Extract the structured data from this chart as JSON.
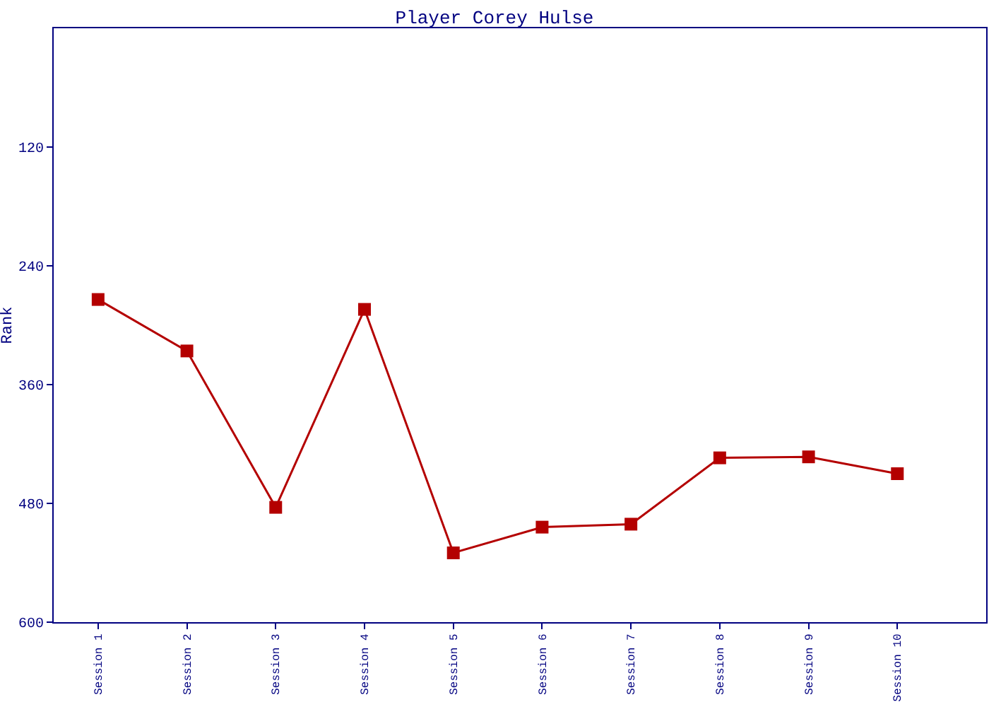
{
  "chart_data": {
    "type": "line",
    "title": "Player Corey Hulse",
    "ylabel": "Rank",
    "categories": [
      "Session 1",
      "Session 2",
      "Session 3",
      "Session 4",
      "Session 5",
      "Session 6",
      "Session 7",
      "Session 8",
      "Session 9",
      "Session 10"
    ],
    "series": [
      {
        "color": "#b40000",
        "values": [
          274,
          326,
          484,
          284,
          530,
          504,
          501,
          434,
          433,
          450
        ]
      }
    ],
    "ylim": [
      600,
      0
    ],
    "yticks": [
      120,
      240,
      360,
      480,
      600
    ],
    "grid": false,
    "marker": "square",
    "line_style": "solid"
  }
}
